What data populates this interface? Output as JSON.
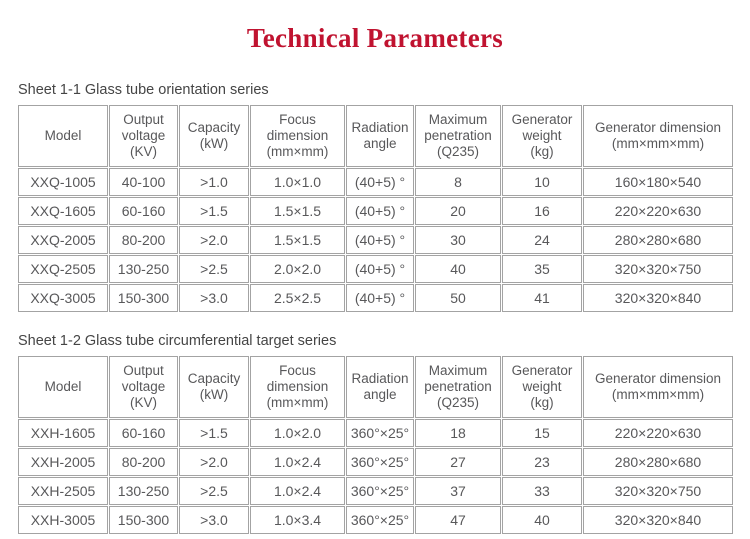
{
  "page_title": "Technical Parameters",
  "theme": {
    "background": "#ffffff",
    "title_color": "#c01330",
    "caption_color": "#454545",
    "text_color": "#58585a",
    "border_color": "#a3a3a3"
  },
  "tables": [
    {
      "caption": "Sheet 1-1 Glass tube orientation series",
      "columns": [
        {
          "key": "model",
          "label": "Model",
          "lines": [
            "Model"
          ]
        },
        {
          "key": "output-voltage",
          "label": "Output voltage (KV)",
          "lines": [
            "Output",
            "voltage",
            "(KV)"
          ]
        },
        {
          "key": "capacity",
          "label": "Capacity (kW)",
          "lines": [
            "Capacity",
            "(kW)"
          ]
        },
        {
          "key": "focus-dimension",
          "label": "Focus dimension (mm×mm)",
          "lines": [
            "Focus",
            "dimension",
            "(mm×mm)"
          ]
        },
        {
          "key": "radiation-angle",
          "label": "Radiation angle",
          "lines": [
            "Radiation",
            "angle"
          ]
        },
        {
          "key": "maximum-penetration",
          "label": "Maximum penetration (Q235)",
          "lines": [
            "Maximum",
            "penetration",
            "(Q235)"
          ]
        },
        {
          "key": "generator-weight",
          "label": "Generator weight (kg)",
          "lines": [
            "Generator",
            "weight",
            "(kg)"
          ]
        },
        {
          "key": "generator-dimension",
          "label": "Generator dimension (mm×mm×mm)",
          "lines": [
            "Generator dimension",
            "(mm×mm×mm)"
          ]
        }
      ],
      "rows": [
        [
          "XXQ-1005",
          "40-100",
          ">1.0",
          "1.0×1.0",
          "(40+5) °",
          "8",
          "10",
          "160×180×540"
        ],
        [
          "XXQ-1605",
          "60-160",
          ">1.5",
          "1.5×1.5",
          "(40+5) °",
          "20",
          "16",
          "220×220×630"
        ],
        [
          "XXQ-2005",
          "80-200",
          ">2.0",
          "1.5×1.5",
          "(40+5) °",
          "30",
          "24",
          "280×280×680"
        ],
        [
          "XXQ-2505",
          "130-250",
          ">2.5",
          "2.0×2.0",
          "(40+5) °",
          "40",
          "35",
          "320×320×750"
        ],
        [
          "XXQ-3005",
          "150-300",
          ">3.0",
          "2.5×2.5",
          "(40+5) °",
          "50",
          "41",
          "320×320×840"
        ]
      ]
    },
    {
      "caption": "Sheet 1-2 Glass tube circumferential target series",
      "columns": [
        {
          "key": "model",
          "label": "Model",
          "lines": [
            "Model"
          ]
        },
        {
          "key": "output-voltage",
          "label": "Output voltage (KV)",
          "lines": [
            "Output",
            "voltage",
            "(KV)"
          ]
        },
        {
          "key": "capacity",
          "label": "Capacity (kW)",
          "lines": [
            "Capacity",
            "(kW)"
          ]
        },
        {
          "key": "focus-dimension",
          "label": "Focus dimension (mm×mm)",
          "lines": [
            "Focus",
            "dimension",
            "(mm×mm)"
          ]
        },
        {
          "key": "radiation-angle",
          "label": "Radiation angle",
          "lines": [
            "Radiation",
            "angle"
          ]
        },
        {
          "key": "maximum-penetration",
          "label": "Maximum penetration (Q235)",
          "lines": [
            "Maximum",
            "penetration",
            "(Q235)"
          ]
        },
        {
          "key": "generator-weight",
          "label": "Generator weight (kg)",
          "lines": [
            "Generator",
            "weight",
            "(kg)"
          ]
        },
        {
          "key": "generator-dimension",
          "label": "Generator dimension (mm×mm×mm)",
          "lines": [
            "Generator dimension",
            "(mm×mm×mm)"
          ]
        }
      ],
      "rows": [
        [
          "XXH-1605",
          "60-160",
          ">1.5",
          "1.0×2.0",
          "360°×25°",
          "18",
          "15",
          "220×220×630"
        ],
        [
          "XXH-2005",
          "80-200",
          ">2.0",
          "1.0×2.4",
          "360°×25°",
          "27",
          "23",
          "280×280×680"
        ],
        [
          "XXH-2505",
          "130-250",
          ">2.5",
          "1.0×2.4",
          "360°×25°",
          "37",
          "33",
          "320×320×750"
        ],
        [
          "XXH-3005",
          "150-300",
          ">3.0",
          "1.0×3.4",
          "360°×25°",
          "47",
          "40",
          "320×320×840"
        ]
      ]
    }
  ]
}
